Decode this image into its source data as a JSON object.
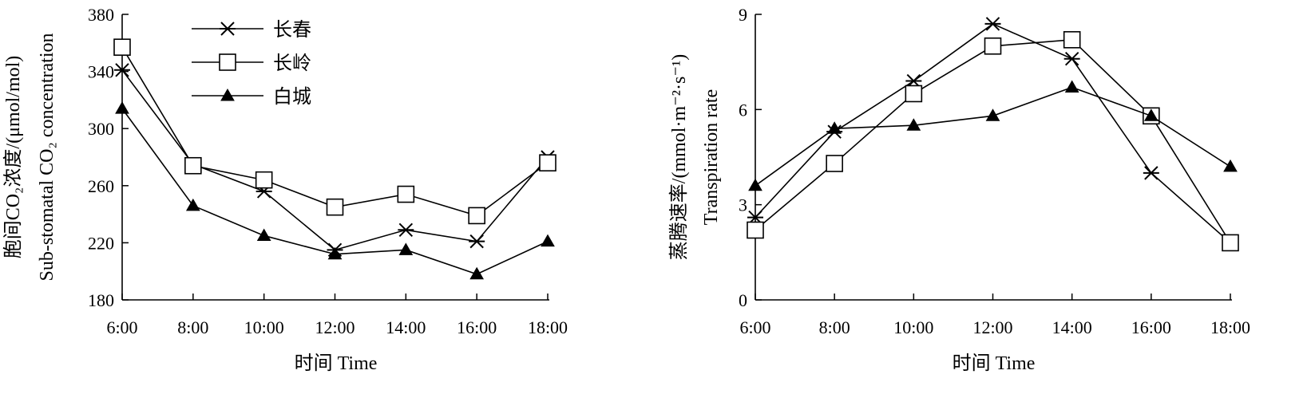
{
  "chart_data": [
    {
      "type": "line",
      "xlabel": "时间 Time",
      "ylabel_lines": [
        "胞间CO₂浓度/(μmol/mol)",
        "Sub-stomatal CO₂ concentration"
      ],
      "categories": [
        "6:00",
        "8:00",
        "10:00",
        "12:00",
        "14:00",
        "16:00",
        "18:00"
      ],
      "ylim": [
        180,
        380
      ],
      "yticks": [
        180,
        220,
        260,
        300,
        340,
        380
      ],
      "grid": false,
      "legend_position": "top-left",
      "series": [
        {
          "name": "长春",
          "marker": "asterisk",
          "values": [
            341,
            275,
            256,
            215,
            229,
            221,
            280
          ]
        },
        {
          "name": "长岭",
          "marker": "square",
          "values": [
            357,
            274,
            264,
            245,
            254,
            239,
            276
          ]
        },
        {
          "name": "白城",
          "marker": "triangle",
          "values": [
            314,
            246,
            225,
            212,
            215,
            198,
            221
          ]
        }
      ]
    },
    {
      "type": "line",
      "xlabel": "时间 Time",
      "ylabel_lines": [
        "蒸腾速率/(mmol·m⁻²·s⁻¹)",
        "Transpiration rate"
      ],
      "categories": [
        "6:00",
        "8:00",
        "10:00",
        "12:00",
        "14:00",
        "16:00",
        "18:00"
      ],
      "ylim": [
        0,
        9
      ],
      "yticks": [
        0,
        3,
        6,
        9
      ],
      "grid": false,
      "series": [
        {
          "name": "长春",
          "marker": "asterisk",
          "values": [
            2.6,
            5.3,
            6.9,
            8.7,
            7.6,
            4.0,
            1.8
          ]
        },
        {
          "name": "长岭",
          "marker": "square",
          "values": [
            2.2,
            4.3,
            6.5,
            8.0,
            8.2,
            5.8,
            1.8
          ]
        },
        {
          "name": "白城",
          "marker": "triangle",
          "values": [
            3.6,
            5.4,
            5.5,
            5.8,
            6.7,
            5.8,
            4.2
          ]
        }
      ]
    }
  ]
}
